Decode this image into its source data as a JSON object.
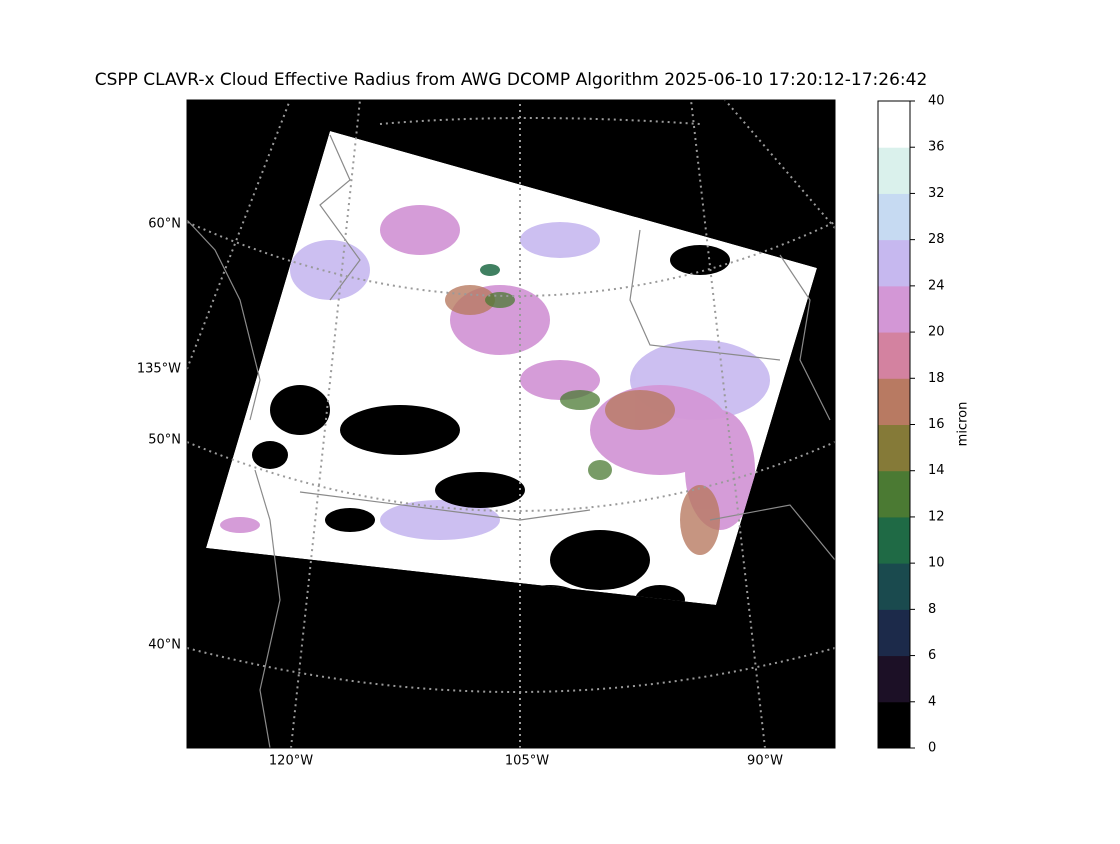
{
  "title": "CSPP CLAVR-x Cloud Effective Radius from AWG DCOMP Algorithm 2025-06-10 17:20:12-17:26:42",
  "map": {
    "lat_labels": [
      "60°N",
      "50°N",
      "40°N"
    ],
    "lon_label_left": "135°W",
    "lon_labels_bottom": [
      "120°W",
      "105°W",
      "90°W"
    ]
  },
  "colorbar": {
    "label": "micron",
    "ticks": [
      0,
      4,
      6,
      8,
      10,
      12,
      14,
      16,
      18,
      20,
      24,
      28,
      32,
      36,
      40
    ],
    "colors": [
      "#000000",
      "#1c1026",
      "#1c2a4a",
      "#1a4a4e",
      "#1f6a45",
      "#4b7a33",
      "#857a38",
      "#b87a62",
      "#d382a0",
      "#d397d6",
      "#c6b8ef",
      "#c6daf2",
      "#daf1ec",
      "#ffffff"
    ]
  }
}
